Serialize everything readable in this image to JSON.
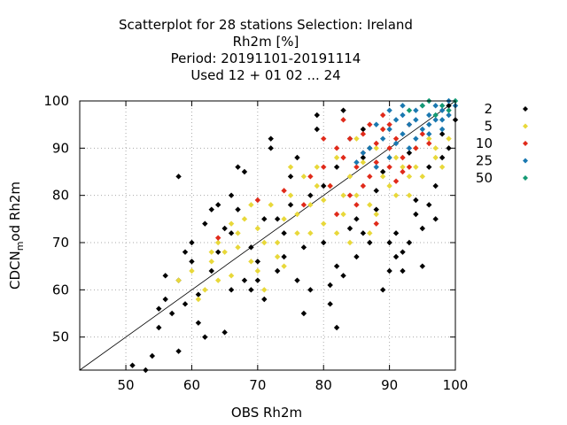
{
  "chart_data": {
    "type": "scatter",
    "title_lines": [
      "Scatterplot for   28 stations Selection: Ireland",
      "Rh2m [%]",
      "Period: 20191101-20191114",
      "Used  12 + 01 02 ... 24"
    ],
    "xlabel": "OBS Rh2m",
    "ylabel_main": "CDCN",
    "ylabel_sub": "m",
    "ylabel_end": "od Rh2m",
    "xlim": [
      43,
      100
    ],
    "ylim": [
      43,
      100
    ],
    "x_ticks": [
      50,
      60,
      70,
      80,
      90,
      100
    ],
    "y_ticks": [
      50,
      60,
      70,
      80,
      90,
      100
    ],
    "grid": true,
    "diagonal": "y=x",
    "legend_position": "right",
    "series": [
      {
        "name": "2",
        "color": "#000000",
        "x": [
          51,
          53,
          54,
          55,
          55,
          56,
          57,
          58,
          58,
          59,
          60,
          60,
          61,
          62,
          63,
          64,
          65,
          66,
          66,
          67,
          68,
          69,
          70,
          71,
          72,
          73,
          74,
          75,
          76,
          77,
          78,
          79,
          80,
          81,
          82,
          83,
          84,
          85,
          86,
          87,
          88,
          89,
          90,
          91,
          92,
          93,
          94,
          95,
          96,
          97,
          98,
          99,
          100,
          58,
          62,
          66,
          70,
          74,
          78,
          82,
          86,
          90,
          94,
          98,
          63,
          67,
          72,
          77,
          82,
          87,
          92,
          97,
          61,
          65,
          69,
          73,
          79,
          83,
          85,
          88,
          56,
          59,
          64,
          71,
          76,
          80,
          84,
          89,
          93,
          96,
          99,
          68,
          75,
          81,
          86,
          91,
          95
        ],
        "y": [
          44,
          43,
          46,
          52,
          56,
          58,
          55,
          84,
          62,
          57,
          70,
          66,
          53,
          74,
          64,
          68,
          51,
          72,
          80,
          77,
          62,
          60,
          66,
          58,
          90,
          64,
          72,
          84,
          62,
          69,
          60,
          94,
          82,
          57,
          52,
          98,
          73,
          67,
          88,
          70,
          77,
          60,
          64,
          72,
          68,
          89,
          76,
          65,
          86,
          82,
          93,
          99,
          96,
          47,
          50,
          60,
          62,
          67,
          80,
          65,
          72,
          70,
          79,
          88,
          77,
          86,
          92,
          55,
          86,
          90,
          64,
          75,
          59,
          73,
          69,
          75,
          97,
          63,
          75,
          81,
          63,
          68,
          78,
          75,
          88,
          70,
          92,
          85,
          70,
          78,
          90,
          85,
          78,
          61,
          94,
          67,
          73
        ]
      },
      {
        "name": "5",
        "color": "#e8d83a",
        "x": [
          58,
          60,
          62,
          63,
          64,
          65,
          66,
          67,
          68,
          69,
          70,
          71,
          72,
          73,
          74,
          75,
          76,
          77,
          78,
          79,
          80,
          81,
          82,
          83,
          84,
          85,
          86,
          87,
          88,
          89,
          90,
          91,
          92,
          93,
          94,
          95,
          96,
          97,
          98,
          99,
          61,
          64,
          67,
          70,
          73,
          76,
          79,
          82,
          85,
          88,
          91,
          94,
          97,
          66,
          71,
          75,
          80,
          84,
          89,
          93,
          63,
          69,
          74,
          78,
          83,
          87
        ],
        "y": [
          62,
          64,
          60,
          66,
          70,
          68,
          63,
          72,
          75,
          66,
          73,
          70,
          78,
          67,
          75,
          80,
          72,
          84,
          78,
          86,
          74,
          82,
          88,
          76,
          84,
          80,
          87,
          78,
          90,
          84,
          82,
          88,
          86,
          80,
          90,
          84,
          92,
          88,
          86,
          92,
          58,
          62,
          69,
          64,
          70,
          76,
          82,
          72,
          92,
          76,
          80,
          86,
          90,
          74,
          60,
          86,
          79,
          70,
          94,
          84,
          68,
          78,
          65,
          72,
          80,
          72
        ]
      },
      {
        "name": "10",
        "color": "#e02a1a",
        "x": [
          64,
          70,
          74,
          77,
          78,
          80,
          81,
          82,
          83,
          84,
          85,
          86,
          86,
          87,
          87,
          88,
          88,
          89,
          90,
          90,
          91,
          92,
          93,
          94,
          95,
          96,
          82,
          84,
          86,
          88,
          90,
          92,
          80,
          83,
          85,
          89,
          91,
          93
        ],
        "y": [
          71,
          79,
          81,
          78,
          84,
          86,
          82,
          90,
          88,
          92,
          86,
          93,
          89,
          95,
          84,
          91,
          87,
          94,
          90,
          86,
          92,
          88,
          95,
          90,
          93,
          91,
          76,
          80,
          82,
          74,
          95,
          85,
          92,
          96,
          78,
          97,
          83,
          86
        ]
      },
      {
        "name": "25",
        "color": "#1a78b0",
        "x": [
          85,
          86,
          87,
          88,
          89,
          90,
          90,
          91,
          91,
          92,
          92,
          93,
          93,
          94,
          94,
          95,
          95,
          96,
          96,
          97,
          97,
          98,
          98,
          99,
          99,
          100,
          88,
          90,
          92,
          94,
          96,
          98
        ],
        "y": [
          87,
          89,
          90,
          86,
          92,
          88,
          94,
          91,
          96,
          93,
          97,
          90,
          95,
          92,
          98,
          94,
          99,
          93,
          97,
          96,
          99,
          94,
          98,
          97,
          100,
          99,
          95,
          98,
          99,
          96,
          95,
          96
        ]
      },
      {
        "name": "50",
        "color": "#159a74",
        "x": [
          93,
          95,
          97,
          98,
          99,
          100,
          96
        ],
        "y": [
          98,
          99,
          97,
          99,
          98,
          100,
          100
        ]
      }
    ]
  }
}
